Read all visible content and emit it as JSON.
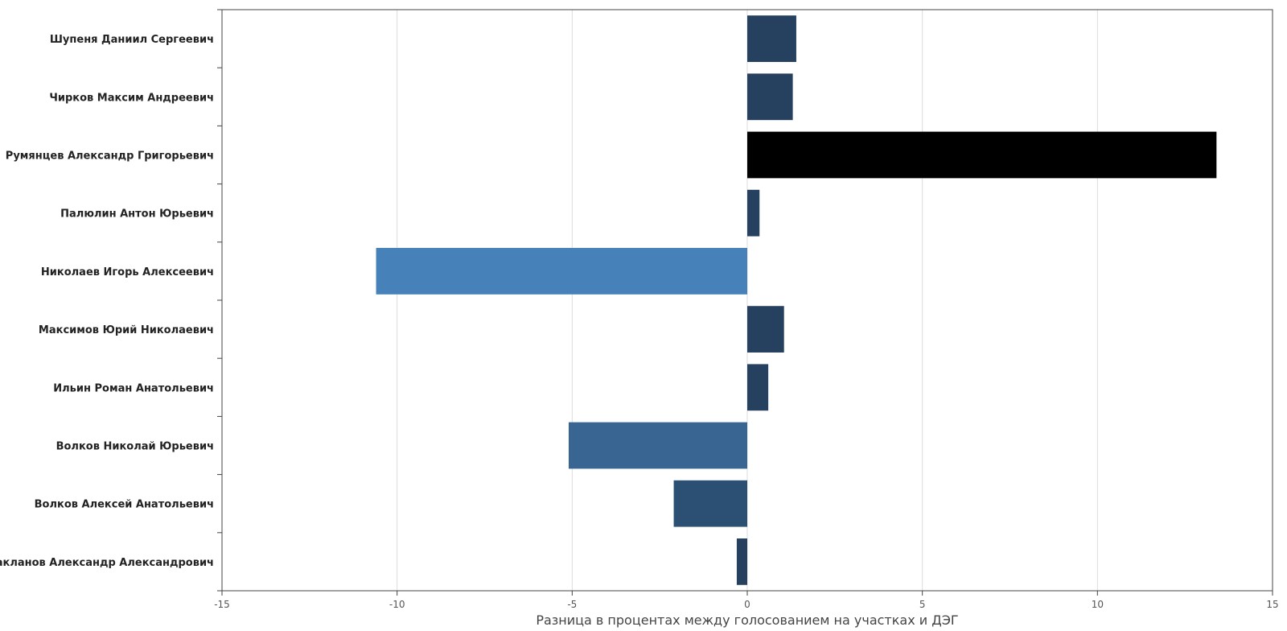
{
  "chart_data": {
    "type": "bar",
    "orientation": "horizontal",
    "title": "",
    "xlabel": "Разница в процентах между голосованием на участках и ДЭГ",
    "ylabel": "",
    "xlim": [
      -15,
      15
    ],
    "xticks": [
      -15,
      -10,
      -5,
      0,
      5,
      10,
      15
    ],
    "grid": true,
    "categories": [
      "Шупеня Даниил Сергеевич",
      "Чирков Максим Андреевич",
      "Румянцев Александр Григорьевич",
      "Палюлин Антон Юрьевич",
      "Николаев Игорь Алексеевич",
      "Максимов Юрий Николаевич",
      "Ильин Роман Анатольевич",
      "Волков Николай Юрьевич",
      "Волков Алексей Анатольевич",
      "Бакланов Александр Александрович"
    ],
    "values": [
      1.4,
      1.3,
      13.4,
      0.35,
      -10.6,
      1.05,
      0.6,
      -5.1,
      -2.1,
      -0.3
    ],
    "colors": [
      "#25415f",
      "#25415f",
      "#000000",
      "#25415f",
      "#4682b9",
      "#25415f",
      "#25415f",
      "#386592",
      "#2b5074",
      "#25415f"
    ]
  }
}
